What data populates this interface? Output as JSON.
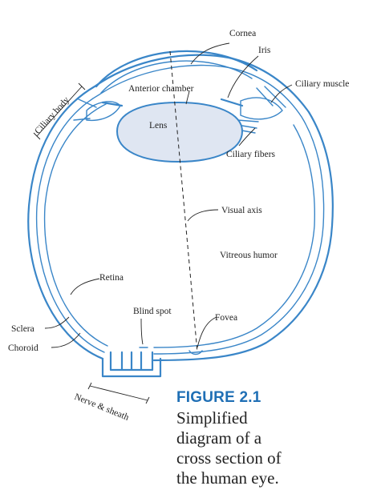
{
  "labels": {
    "cornea": "Cornea",
    "iris": "Iris",
    "ciliary_body": "Ciliary body",
    "anterior_chamber": "Anterior chamber",
    "ciliary_muscle": "Ciliary muscle",
    "lens": "Lens",
    "ciliary_fibers": "Ciliary fibers",
    "visual_axis": "Visual axis",
    "vitreous_humor": "Vitreous humor",
    "retina": "Retina",
    "blind_spot": "Blind spot",
    "fovea": "Fovea",
    "sclera": "Sclera",
    "choroid": "Choroid",
    "nerve_sheath": "Nerve & sheath"
  },
  "figure": {
    "number": "FIGURE 2.1",
    "caption_lines": [
      "Simplified",
      "diagram of a",
      "cross section of",
      "the human eye."
    ]
  },
  "colors": {
    "eye_stroke": "#3a86c8",
    "lens_fill": "#dfe6f2",
    "figure_title": "#1f6fb5",
    "text": "#222222"
  }
}
